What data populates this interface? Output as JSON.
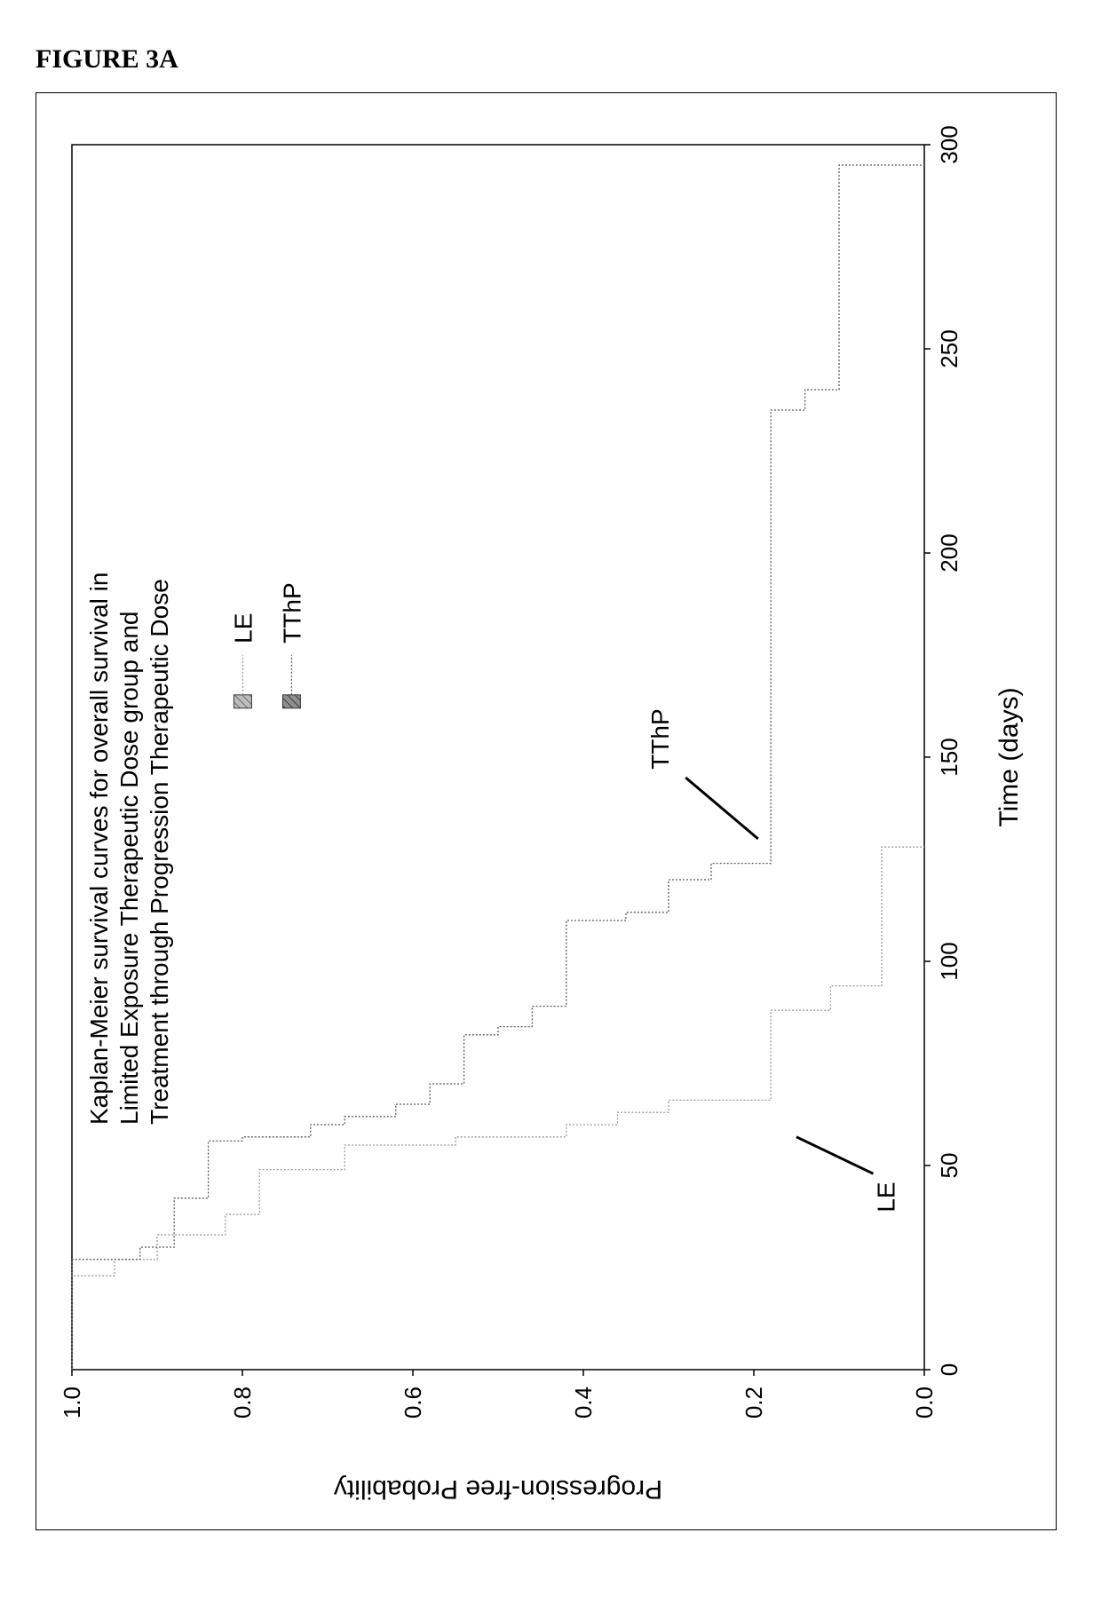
{
  "figure_label": "FIGURE 3A",
  "chart": {
    "type": "kaplan-meier-step",
    "title_lines": [
      "Kaplan-Meier survival curves for overall survival in",
      "Limited Exposure Therapeutic Dose group and",
      "Treatment through Progression Therapeutic Dose"
    ],
    "xlabel": "Time (days)",
    "ylabel": "Progression-free Probability",
    "xlim": [
      0,
      300
    ],
    "ylim": [
      0.0,
      1.0
    ],
    "xticks": [
      0,
      50,
      100,
      150,
      200,
      250,
      300
    ],
    "yticks": [
      0.0,
      0.2,
      0.4,
      0.6,
      0.8,
      1.0
    ],
    "axis_box": true,
    "background_color": "#ffffff",
    "axis_color": "#000000",
    "tick_length": 7,
    "tick_label_fontsize": 26,
    "axis_label_fontsize": 30,
    "title_fontsize": 28,
    "line_width": 1.3,
    "series": {
      "LE": {
        "label": "LE",
        "color": "#9a9a9a",
        "dash": "2,2",
        "steps": [
          [
            0,
            1.0
          ],
          [
            23,
            1.0
          ],
          [
            23,
            0.95
          ],
          [
            27,
            0.95
          ],
          [
            27,
            0.9
          ],
          [
            33,
            0.9
          ],
          [
            33,
            0.82
          ],
          [
            38,
            0.82
          ],
          [
            38,
            0.78
          ],
          [
            49,
            0.78
          ],
          [
            49,
            0.68
          ],
          [
            55,
            0.68
          ],
          [
            55,
            0.55
          ],
          [
            57,
            0.55
          ],
          [
            57,
            0.42
          ],
          [
            60,
            0.42
          ],
          [
            60,
            0.36
          ],
          [
            63,
            0.36
          ],
          [
            63,
            0.3
          ],
          [
            66,
            0.3
          ],
          [
            66,
            0.18
          ],
          [
            88,
            0.18
          ],
          [
            88,
            0.11
          ],
          [
            94,
            0.11
          ],
          [
            94,
            0.05
          ],
          [
            128,
            0.05
          ],
          [
            128,
            0.0
          ]
        ],
        "callout": {
          "text": "LE",
          "line_from": [
            57,
            0.15
          ],
          "line_to": [
            48,
            0.06
          ],
          "label_at": [
            46,
            0.035
          ]
        }
      },
      "TThP": {
        "label": "TThP",
        "color": "#5a5a5a",
        "dash": "2,2",
        "steps": [
          [
            0,
            1.0
          ],
          [
            27,
            1.0
          ],
          [
            27,
            0.92
          ],
          [
            30,
            0.92
          ],
          [
            30,
            0.88
          ],
          [
            42,
            0.88
          ],
          [
            42,
            0.84
          ],
          [
            56,
            0.84
          ],
          [
            56,
            0.8
          ],
          [
            57,
            0.8
          ],
          [
            57,
            0.72
          ],
          [
            60,
            0.72
          ],
          [
            60,
            0.68
          ],
          [
            62,
            0.68
          ],
          [
            62,
            0.62
          ],
          [
            65,
            0.62
          ],
          [
            65,
            0.58
          ],
          [
            70,
            0.58
          ],
          [
            70,
            0.54
          ],
          [
            82,
            0.54
          ],
          [
            82,
            0.5
          ],
          [
            84,
            0.5
          ],
          [
            84,
            0.46
          ],
          [
            89,
            0.46
          ],
          [
            89,
            0.42
          ],
          [
            110,
            0.42
          ],
          [
            110,
            0.35
          ],
          [
            112,
            0.35
          ],
          [
            112,
            0.3
          ],
          [
            120,
            0.3
          ],
          [
            120,
            0.25
          ],
          [
            124,
            0.25
          ],
          [
            124,
            0.18
          ],
          [
            235,
            0.18
          ],
          [
            235,
            0.14
          ],
          [
            240,
            0.14
          ],
          [
            240,
            0.1
          ],
          [
            295,
            0.1
          ],
          [
            295,
            0.0
          ]
        ],
        "callout": {
          "text": "TThP",
          "line_from": [
            130,
            0.195
          ],
          "line_to": [
            145,
            0.28
          ],
          "label_at": [
            147,
            0.3
          ]
        }
      }
    },
    "legend": {
      "x": 162,
      "y_top": 0.81,
      "swatch_w": 15,
      "swatch_h": 20,
      "items": [
        {
          "key": "LE",
          "fill": "#bdbdbd",
          "hatch": "#6f6f6f",
          "line_color": "#9a9a9a",
          "label": "LE"
        },
        {
          "key": "TThP",
          "fill": "#8f8f8f",
          "hatch": "#3b3b3b",
          "line_color": "#5a5a5a",
          "label": "TThP"
        }
      ],
      "label_fontsize": 28
    }
  }
}
